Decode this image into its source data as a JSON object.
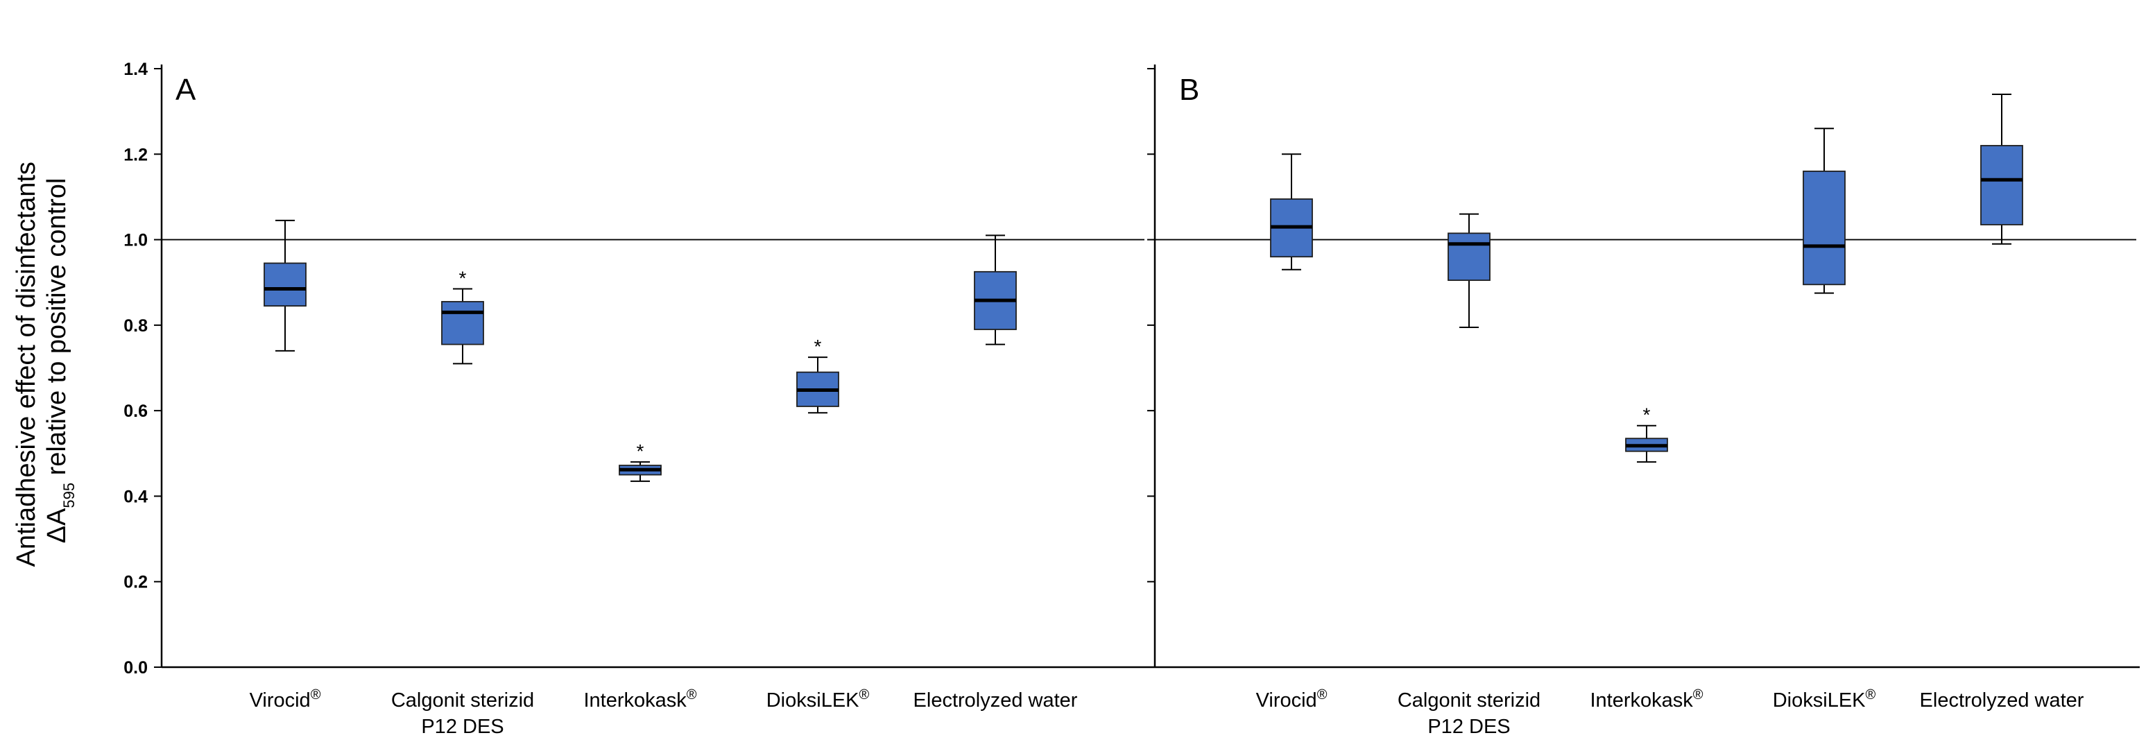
{
  "chart_data": {
    "type": "box",
    "ylabel_line1": "Antiadhesive effect of disinfectants",
    "ylabel_line2_prefix": "ΔA",
    "ylabel_line2_sub": "595",
    "ylabel_line2_suffix": " relative to positive control",
    "ylim": [
      0,
      1.4
    ],
    "yticks": [
      "0.0",
      "0.2",
      "0.4",
      "0.6",
      "0.8",
      "1.0",
      "1.2",
      "1.4"
    ],
    "reference_line": 1.0,
    "box_color": "#4472C4",
    "categories": [
      {
        "line1": "Virocid",
        "sup": "®",
        "line2": ""
      },
      {
        "line1": "Calgonit sterizid",
        "sup": "",
        "line2": "P12 DES"
      },
      {
        "line1": "Interkokask",
        "sup": "®",
        "line2": ""
      },
      {
        "line1": "DioksiLEK",
        "sup": "®",
        "line2": ""
      },
      {
        "line1": "Electrolyzed water",
        "sup": "",
        "line2": ""
      }
    ],
    "panels": [
      {
        "label": "A",
        "boxes": [
          {
            "min": 0.74,
            "q1": 0.845,
            "median": 0.885,
            "q3": 0.945,
            "max": 1.045,
            "sig": ""
          },
          {
            "min": 0.71,
            "q1": 0.755,
            "median": 0.83,
            "q3": 0.855,
            "max": 0.885,
            "sig": "*"
          },
          {
            "min": 0.435,
            "q1": 0.45,
            "median": 0.462,
            "q3": 0.472,
            "max": 0.48,
            "sig": "*"
          },
          {
            "min": 0.595,
            "q1": 0.61,
            "median": 0.648,
            "q3": 0.69,
            "max": 0.725,
            "sig": "*"
          },
          {
            "min": 0.755,
            "q1": 0.79,
            "median": 0.858,
            "q3": 0.925,
            "max": 1.01,
            "sig": ""
          }
        ]
      },
      {
        "label": "B",
        "boxes": [
          {
            "min": 0.93,
            "q1": 0.96,
            "median": 1.03,
            "q3": 1.095,
            "max": 1.2,
            "sig": ""
          },
          {
            "min": 0.795,
            "q1": 0.905,
            "median": 0.99,
            "q3": 1.015,
            "max": 1.06,
            "sig": ""
          },
          {
            "min": 0.48,
            "q1": 0.505,
            "median": 0.518,
            "q3": 0.535,
            "max": 0.565,
            "sig": "*"
          },
          {
            "min": 0.875,
            "q1": 0.895,
            "median": 0.985,
            "q3": 1.16,
            "max": 1.26,
            "sig": ""
          },
          {
            "min": 0.99,
            "q1": 1.035,
            "median": 1.14,
            "q3": 1.22,
            "max": 1.34,
            "sig": ""
          }
        ]
      }
    ]
  }
}
